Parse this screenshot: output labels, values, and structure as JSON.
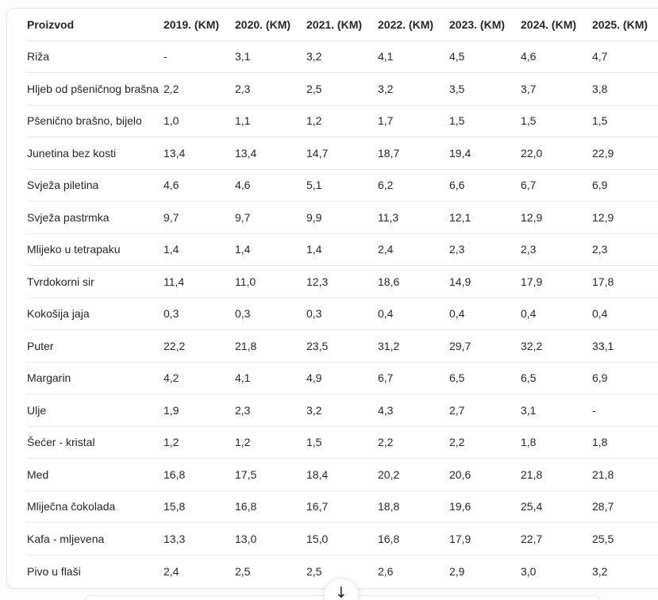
{
  "table": {
    "columns": [
      "Proizvod",
      "2019. (KM)",
      "2020. (KM)",
      "2021. (KM)",
      "2022. (KM)",
      "2023. (KM)",
      "2024. (KM)",
      "2025. (KM)"
    ],
    "rows": [
      {
        "product": "Riža",
        "values": [
          "-",
          "3,1",
          "3,2",
          "4,1",
          "4,5",
          "4,6",
          "4,7"
        ]
      },
      {
        "product": "Hljeb od pšeničnog brašna",
        "values": [
          "2,2",
          "2,3",
          "2,5",
          "3,2",
          "3,5",
          "3,7",
          "3,8"
        ]
      },
      {
        "product": "Pšenično brašno, bijelo",
        "values": [
          "1,0",
          "1,1",
          "1,2",
          "1,7",
          "1,5",
          "1,5",
          "1,5"
        ]
      },
      {
        "product": "Junetina bez kosti",
        "values": [
          "13,4",
          "13,4",
          "14,7",
          "18,7",
          "19,4",
          "22,0",
          "22,9"
        ]
      },
      {
        "product": "Svježa piletina",
        "values": [
          "4,6",
          "4,6",
          "5,1",
          "6,2",
          "6,6",
          "6,7",
          "6,9"
        ]
      },
      {
        "product": "Svježa pastrmka",
        "values": [
          "9,7",
          "9,7",
          "9,9",
          "11,3",
          "12,1",
          "12,9",
          "12,9"
        ]
      },
      {
        "product": "Mlijeko u tetrapaku",
        "values": [
          "1,4",
          "1,4",
          "1,4",
          "2,4",
          "2,3",
          "2,3",
          "2,3"
        ]
      },
      {
        "product": "Tvrdokorni sir",
        "values": [
          "11,4",
          "11,0",
          "12,3",
          "18,6",
          "14,9",
          "17,9",
          "17,8"
        ]
      },
      {
        "product": "Kokošija jaja",
        "values": [
          "0,3",
          "0,3",
          "0,3",
          "0,4",
          "0,4",
          "0,4",
          "0,4"
        ]
      },
      {
        "product": "Puter",
        "values": [
          "22,2",
          "21,8",
          "23,5",
          "31,2",
          "29,7",
          "32,2",
          "33,1"
        ]
      },
      {
        "product": "Margarin",
        "values": [
          "4,2",
          "4,1",
          "4,9",
          "6,7",
          "6,5",
          "6,5",
          "6,9"
        ]
      },
      {
        "product": "Ulje",
        "values": [
          "1,9",
          "2,3",
          "3,2",
          "4,3",
          "2,7",
          "3,1",
          "-"
        ]
      },
      {
        "product": "Šećer - kristal",
        "values": [
          "1,2",
          "1,2",
          "1,5",
          "2,2",
          "2,2",
          "1,8",
          "1,8"
        ]
      },
      {
        "product": "Med",
        "values": [
          "16,8",
          "17,5",
          "18,4",
          "20,2",
          "20,6",
          "21,8",
          "21,8"
        ]
      },
      {
        "product": "Mliječna čokolada",
        "values": [
          "15,8",
          "16,8",
          "16,7",
          "18,8",
          "19,6",
          "25,4",
          "28,7"
        ]
      },
      {
        "product": "Kafa - mljevena",
        "values": [
          "13,3",
          "13,0",
          "15,0",
          "16,8",
          "17,9",
          "22,7",
          "25,5"
        ]
      },
      {
        "product": "Pivo u flaši",
        "values": [
          "2,4",
          "2,5",
          "2,5",
          "2,6",
          "2,9",
          "3,0",
          "3,2"
        ]
      }
    ]
  },
  "scroll_button": {
    "glyph": "↓"
  },
  "colors": {
    "text": "#262626",
    "separator": "#eaeaea",
    "card_background": "#ffffff",
    "page_background": "#fdfdfd",
    "card_border": "#e7e7e7"
  }
}
